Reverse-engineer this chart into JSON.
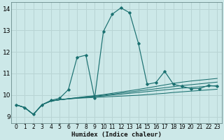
{
  "xlabel": "Humidex (Indice chaleur)",
  "bg_color": "#cce8e8",
  "grid_color": "#b8d4d4",
  "line_color": "#1a7070",
  "xlim": [
    -0.5,
    23.5
  ],
  "ylim": [
    8.7,
    14.3
  ],
  "yticks": [
    9,
    10,
    11,
    12,
    13,
    14
  ],
  "xticks": [
    0,
    1,
    2,
    3,
    4,
    5,
    6,
    7,
    8,
    9,
    10,
    11,
    12,
    13,
    14,
    15,
    16,
    17,
    18,
    19,
    20,
    21,
    22,
    23
  ],
  "main_line_x": [
    0,
    1,
    2,
    3,
    4,
    5,
    6,
    7,
    8,
    9,
    10,
    11,
    12,
    13,
    14,
    15,
    16,
    17,
    18,
    19,
    20,
    21,
    22,
    23
  ],
  "main_line_y": [
    9.55,
    9.42,
    9.1,
    9.55,
    9.75,
    9.85,
    10.25,
    11.75,
    11.85,
    9.85,
    12.95,
    13.75,
    14.05,
    13.82,
    12.4,
    10.5,
    10.58,
    11.1,
    10.5,
    10.4,
    10.3,
    10.3,
    10.45,
    10.4
  ],
  "flat_lines": [
    [
      9.55,
      9.42,
      9.1,
      9.55,
      9.72,
      9.78,
      9.82,
      9.85,
      9.87,
      9.89,
      9.91,
      9.93,
      9.95,
      9.97,
      9.99,
      10.02,
      10.05,
      10.08,
      10.12,
      10.15,
      10.18,
      10.21,
      10.24,
      10.27
    ],
    [
      9.55,
      9.42,
      9.1,
      9.55,
      9.72,
      9.78,
      9.82,
      9.86,
      9.89,
      9.92,
      9.96,
      10.0,
      10.04,
      10.08,
      10.12,
      10.16,
      10.2,
      10.24,
      10.28,
      10.32,
      10.35,
      10.38,
      10.41,
      10.44
    ],
    [
      9.55,
      9.42,
      9.1,
      9.55,
      9.72,
      9.78,
      9.83,
      9.87,
      9.91,
      9.95,
      9.99,
      10.04,
      10.09,
      10.14,
      10.19,
      10.24,
      10.29,
      10.34,
      10.39,
      10.44,
      10.48,
      10.52,
      10.56,
      10.6
    ],
    [
      9.55,
      9.42,
      9.1,
      9.55,
      9.72,
      9.78,
      9.83,
      9.88,
      9.93,
      9.97,
      10.02,
      10.08,
      10.14,
      10.2,
      10.26,
      10.33,
      10.4,
      10.47,
      10.54,
      10.6,
      10.65,
      10.69,
      10.73,
      10.77
    ]
  ]
}
